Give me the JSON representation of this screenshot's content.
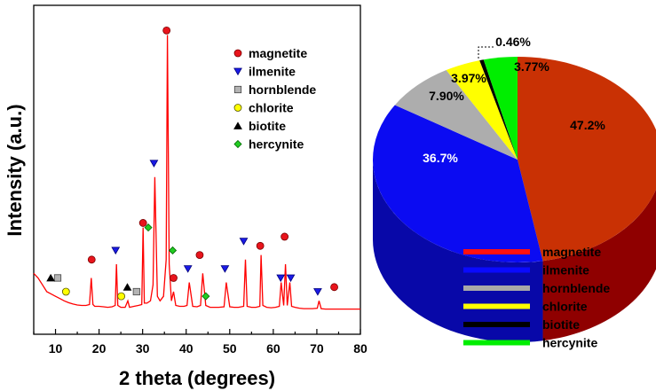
{
  "chart_data": [
    {
      "type": "line",
      "title": "",
      "xlabel": "2 theta (degrees)",
      "ylabel": "Intensity (a.u.)",
      "xlim": [
        5,
        80
      ],
      "xticks": [
        10,
        20,
        30,
        40,
        50,
        60,
        70,
        80
      ],
      "grid": false,
      "legend_position": "top-right",
      "series": [
        {
          "color": "#ff0000",
          "x": [
            5,
            6,
            7,
            8,
            9,
            10,
            11,
            12,
            13,
            14,
            15,
            16,
            17,
            17.8,
            18.2,
            18.6,
            19,
            20,
            21,
            22,
            23,
            23.7,
            24,
            24.3,
            25,
            26,
            26.6,
            27,
            28,
            29,
            29.8,
            30.1,
            30.4,
            31,
            31.8,
            32.4,
            32.8,
            33.4,
            34,
            34.8,
            35.4,
            35.7,
            36.1,
            36.6,
            37.1,
            37.6,
            38.5,
            39.5,
            40.2,
            40.7,
            41.5,
            42.5,
            43.3,
            43.8,
            44.5,
            45.5,
            46.5,
            47.5,
            48.7,
            49.2,
            50,
            51,
            52,
            53.2,
            53.6,
            54,
            55,
            56,
            56.9,
            57.2,
            57.6,
            58.5,
            59.5,
            60.5,
            61.4,
            61.8,
            62.4,
            62.8,
            63.2,
            63.8,
            64.2,
            65,
            66,
            67,
            68,
            69,
            70.1,
            70.5,
            71,
            72,
            73,
            74,
            75,
            76,
            77,
            78,
            79,
            80
          ],
          "y": [
            10,
            9,
            7.5,
            6,
            5.5,
            5,
            4.5,
            4,
            3.6,
            3.3,
            3.1,
            3,
            3,
            3.2,
            9,
            3.2,
            2.8,
            2.8,
            2.7,
            2.6,
            2.7,
            3,
            12,
            3,
            2.6,
            2.6,
            4,
            2.6,
            2.8,
            3,
            3.2,
            20,
            3.5,
            3.5,
            4,
            7.5,
            31,
            5,
            4,
            5,
            13,
            62,
            12,
            4,
            6,
            3,
            2.8,
            2.8,
            3,
            8,
            2.8,
            2.7,
            3,
            10,
            3,
            2.6,
            2.6,
            2.6,
            2.7,
            8,
            2.7,
            2.6,
            2.6,
            2.8,
            13,
            2.8,
            2.6,
            2.6,
            2.8,
            14,
            3,
            2.6,
            2.5,
            2.6,
            2.8,
            8,
            3,
            12,
            3,
            8,
            2.8,
            2.6,
            2.4,
            2.3,
            2.3,
            2.3,
            2.4,
            4,
            2.3,
            2.2,
            2.2,
            2.2,
            2.2,
            2.2,
            2.2,
            2.2,
            2.2,
            2.2
          ]
        }
      ],
      "peak_markers": [
        {
          "name": "magnetite",
          "x": [
            18.3,
            30.1,
            35.5,
            37.1,
            43.1,
            57.0,
            62.6,
            74.0
          ],
          "y": [
            13,
            21,
            63,
            9,
            14,
            16,
            18,
            7
          ]
        },
        {
          "name": "ilmenite",
          "x": [
            23.8,
            32.6,
            40.4,
            48.9,
            53.2,
            61.7,
            64.0,
            70.2
          ],
          "y": [
            15,
            34,
            11,
            11,
            17,
            9,
            9,
            6
          ]
        },
        {
          "name": "hornblende",
          "x": [
            10.5,
            28.6
          ],
          "y": [
            9,
            6
          ]
        },
        {
          "name": "chlorite",
          "x": [
            12.4,
            25.1
          ],
          "y": [
            6,
            5
          ]
        },
        {
          "name": "biotite",
          "x": [
            8.9,
            26.5
          ],
          "y": [
            9,
            7
          ]
        },
        {
          "name": "hercynite",
          "x": [
            31.3,
            36.9,
            44.5
          ],
          "y": [
            20,
            15,
            5
          ]
        }
      ]
    },
    {
      "type": "pie",
      "title": "",
      "style": "3d",
      "legend_position": "bottom",
      "labels": [
        "magnetite",
        "ilmenite",
        "hornblende",
        "chlorite",
        "biotite",
        "hercynite"
      ],
      "values": [
        47.2,
        36.7,
        7.9,
        3.97,
        0.46,
        3.77
      ],
      "value_labels": [
        "47.2%",
        "36.7%",
        "7.90%",
        "3.97%",
        "0.46%",
        "3.77%"
      ]
    }
  ],
  "xrd_legend": [
    {
      "label": "magnetite",
      "marker": "circle",
      "fill": "#e8141c",
      "stroke": "#7a0000"
    },
    {
      "label": "ilmenite",
      "marker": "triangle-down",
      "fill": "#1a1ae6",
      "stroke": "#00007a"
    },
    {
      "label": "hornblende",
      "marker": "square",
      "fill": "#b4b4b4",
      "stroke": "#444444"
    },
    {
      "label": "chlorite",
      "marker": "circle",
      "fill": "#ffff00",
      "stroke": "#555500"
    },
    {
      "label": "biotite",
      "marker": "triangle-up",
      "fill": "#000000",
      "stroke": "#000000"
    },
    {
      "label": "hercynite",
      "marker": "diamond",
      "fill": "#22cc22",
      "stroke": "#006600"
    }
  ],
  "pie_legend": [
    {
      "label": "magnetite",
      "color": "#ff1010"
    },
    {
      "label": "ilmenite",
      "color": "#0a0aff"
    },
    {
      "label": "hornblende",
      "color": "#a8a8a8"
    },
    {
      "label": "chlorite",
      "color": "#ffff00"
    },
    {
      "label": "biotite",
      "color": "#000000"
    },
    {
      "label": "hercynite",
      "color": "#00ee00"
    }
  ],
  "pie_colors": {
    "top": [
      "#c93104",
      "#0b0bf2",
      "#adadad",
      "#ffff00",
      "#000000",
      "#00ee00"
    ],
    "side": [
      "#8f0000",
      "#0808a8",
      "#6d6d6d",
      "#a8a800",
      "#000000",
      "#00a000"
    ]
  }
}
